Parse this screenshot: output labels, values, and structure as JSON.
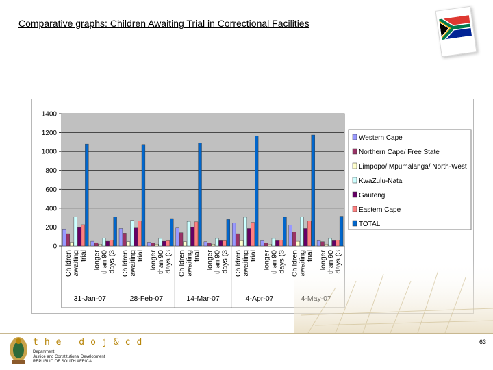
{
  "title": "Comparative graphs: Children Awaiting Trial in Correctional Facilities",
  "page_number": "63",
  "footer": {
    "logo_text": "the doj&cd",
    "dept_lines": [
      "Department:",
      "Justice and Constitutional Development",
      "REPUBLIC OF SOUTH AFRICA"
    ]
  },
  "icons": [
    "south-africa-flag-icon",
    "coat-of-arms-icon"
  ],
  "chart_data": {
    "type": "bar",
    "title": "",
    "xlabel": "",
    "ylabel": "",
    "ylim": [
      0,
      1400
    ],
    "yticks": [
      0,
      200,
      400,
      600,
      800,
      1000,
      1200,
      1400
    ],
    "grid": true,
    "legend_position": "right",
    "groups": [
      "31-Jan-07",
      "28-Feb-07",
      "14-Mar-07",
      "4-Apr-07",
      "4-May-07"
    ],
    "categories": [
      "Children awaiting trial",
      "longer than 90 days (3"
    ],
    "category_lines": [
      [
        "Children",
        "awaiting",
        "trial"
      ],
      [
        "longer",
        "than 90",
        "days (3"
      ]
    ],
    "series": [
      {
        "name": "Western Cape",
        "color": "#9999ff",
        "values": [
          [
            180,
            50
          ],
          [
            185,
            40
          ],
          [
            190,
            45
          ],
          [
            245,
            55
          ],
          [
            220,
            55
          ]
        ]
      },
      {
        "name": "Northern Cape/ Free State",
        "color": "#993366",
        "values": [
          [
            130,
            35
          ],
          [
            135,
            30
          ],
          [
            140,
            30
          ],
          [
            130,
            30
          ],
          [
            150,
            45
          ]
        ]
      },
      {
        "name": "Limpopo/ Mpumalanga/ North-West",
        "color": "#ffffcc",
        "values": [
          [
            40,
            20
          ],
          [
            45,
            20
          ],
          [
            45,
            20
          ],
          [
            55,
            20
          ],
          [
            50,
            20
          ]
        ]
      },
      {
        "name": "KwaZulu-Natal",
        "color": "#ccffff",
        "values": [
          [
            310,
            85
          ],
          [
            270,
            80
          ],
          [
            260,
            80
          ],
          [
            305,
            80
          ],
          [
            310,
            80
          ]
        ]
      },
      {
        "name": "Gauteng",
        "color": "#660066",
        "values": [
          [
            195,
            50
          ],
          [
            190,
            50
          ],
          [
            200,
            55
          ],
          [
            185,
            55
          ],
          [
            185,
            55
          ]
        ]
      },
      {
        "name": "Eastern Cape",
        "color": "#ff8080",
        "values": [
          [
            225,
            60
          ],
          [
            265,
            55
          ],
          [
            255,
            55
          ],
          [
            250,
            60
          ],
          [
            265,
            60
          ]
        ]
      },
      {
        "name": "TOTAL",
        "color": "#0066cc",
        "values": [
          [
            1080,
            310
          ],
          [
            1075,
            290
          ],
          [
            1090,
            280
          ],
          [
            1165,
            305
          ],
          [
            1175,
            315
          ]
        ]
      }
    ]
  }
}
